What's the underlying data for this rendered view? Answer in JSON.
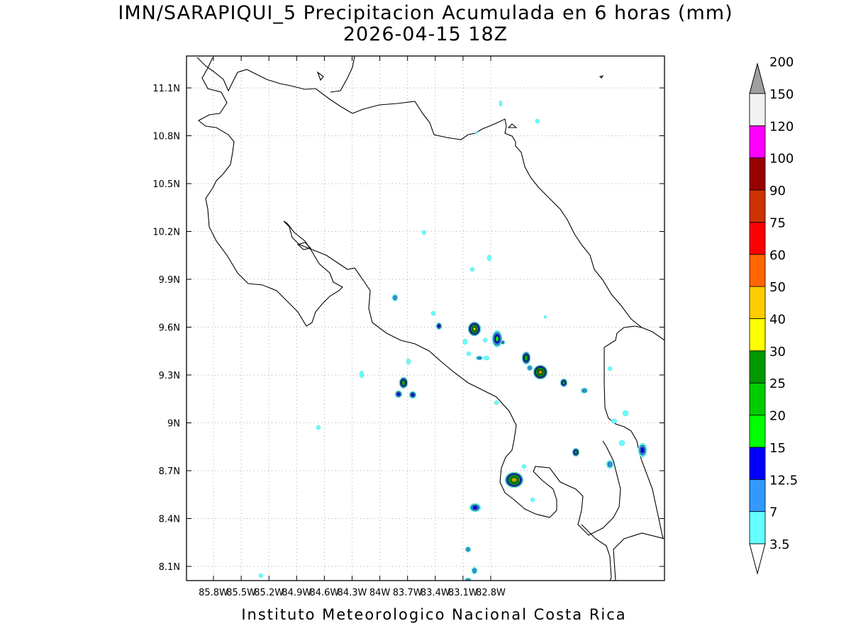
{
  "map": {
    "title_line1": "IMN/SARAPIQUI_5 Precipitacion Acumulada en 6 horas (mm)",
    "title_line2": "2026-04-15 18Z",
    "footer": "Instituto Meteorologico Nacional Costa Rica",
    "lon_labels": [
      "85.8W",
      "85.5W",
      "85.2W",
      "84.9W",
      "84.6W",
      "84.3W",
      "84W",
      "83.7W",
      "83.4W",
      "83.1W",
      "82.8W"
    ],
    "lat_labels": [
      "11.1N",
      "10.8N",
      "10.5N",
      "10.2N",
      "9.9N",
      "9.6N",
      "9.3N",
      "9N",
      "8.7N",
      "8.4N",
      "8.1N"
    ]
  },
  "colorbar": {
    "levels": [
      "3.5",
      "7",
      "12.5",
      "15",
      "20",
      "25",
      "30",
      "40",
      "50",
      "60",
      "75",
      "90",
      "100",
      "120",
      "150",
      "200"
    ],
    "colors": [
      "#66ffff",
      "#3399ff",
      "#0000ff",
      "#00ff00",
      "#00cc00",
      "#009900",
      "#ffff00",
      "#ffcc00",
      "#ff6600",
      "#ff0000",
      "#cc3300",
      "#990000",
      "#ff00ff",
      "#9933cc",
      "#f2f2f2",
      "#a0a0a0"
    ]
  }
}
